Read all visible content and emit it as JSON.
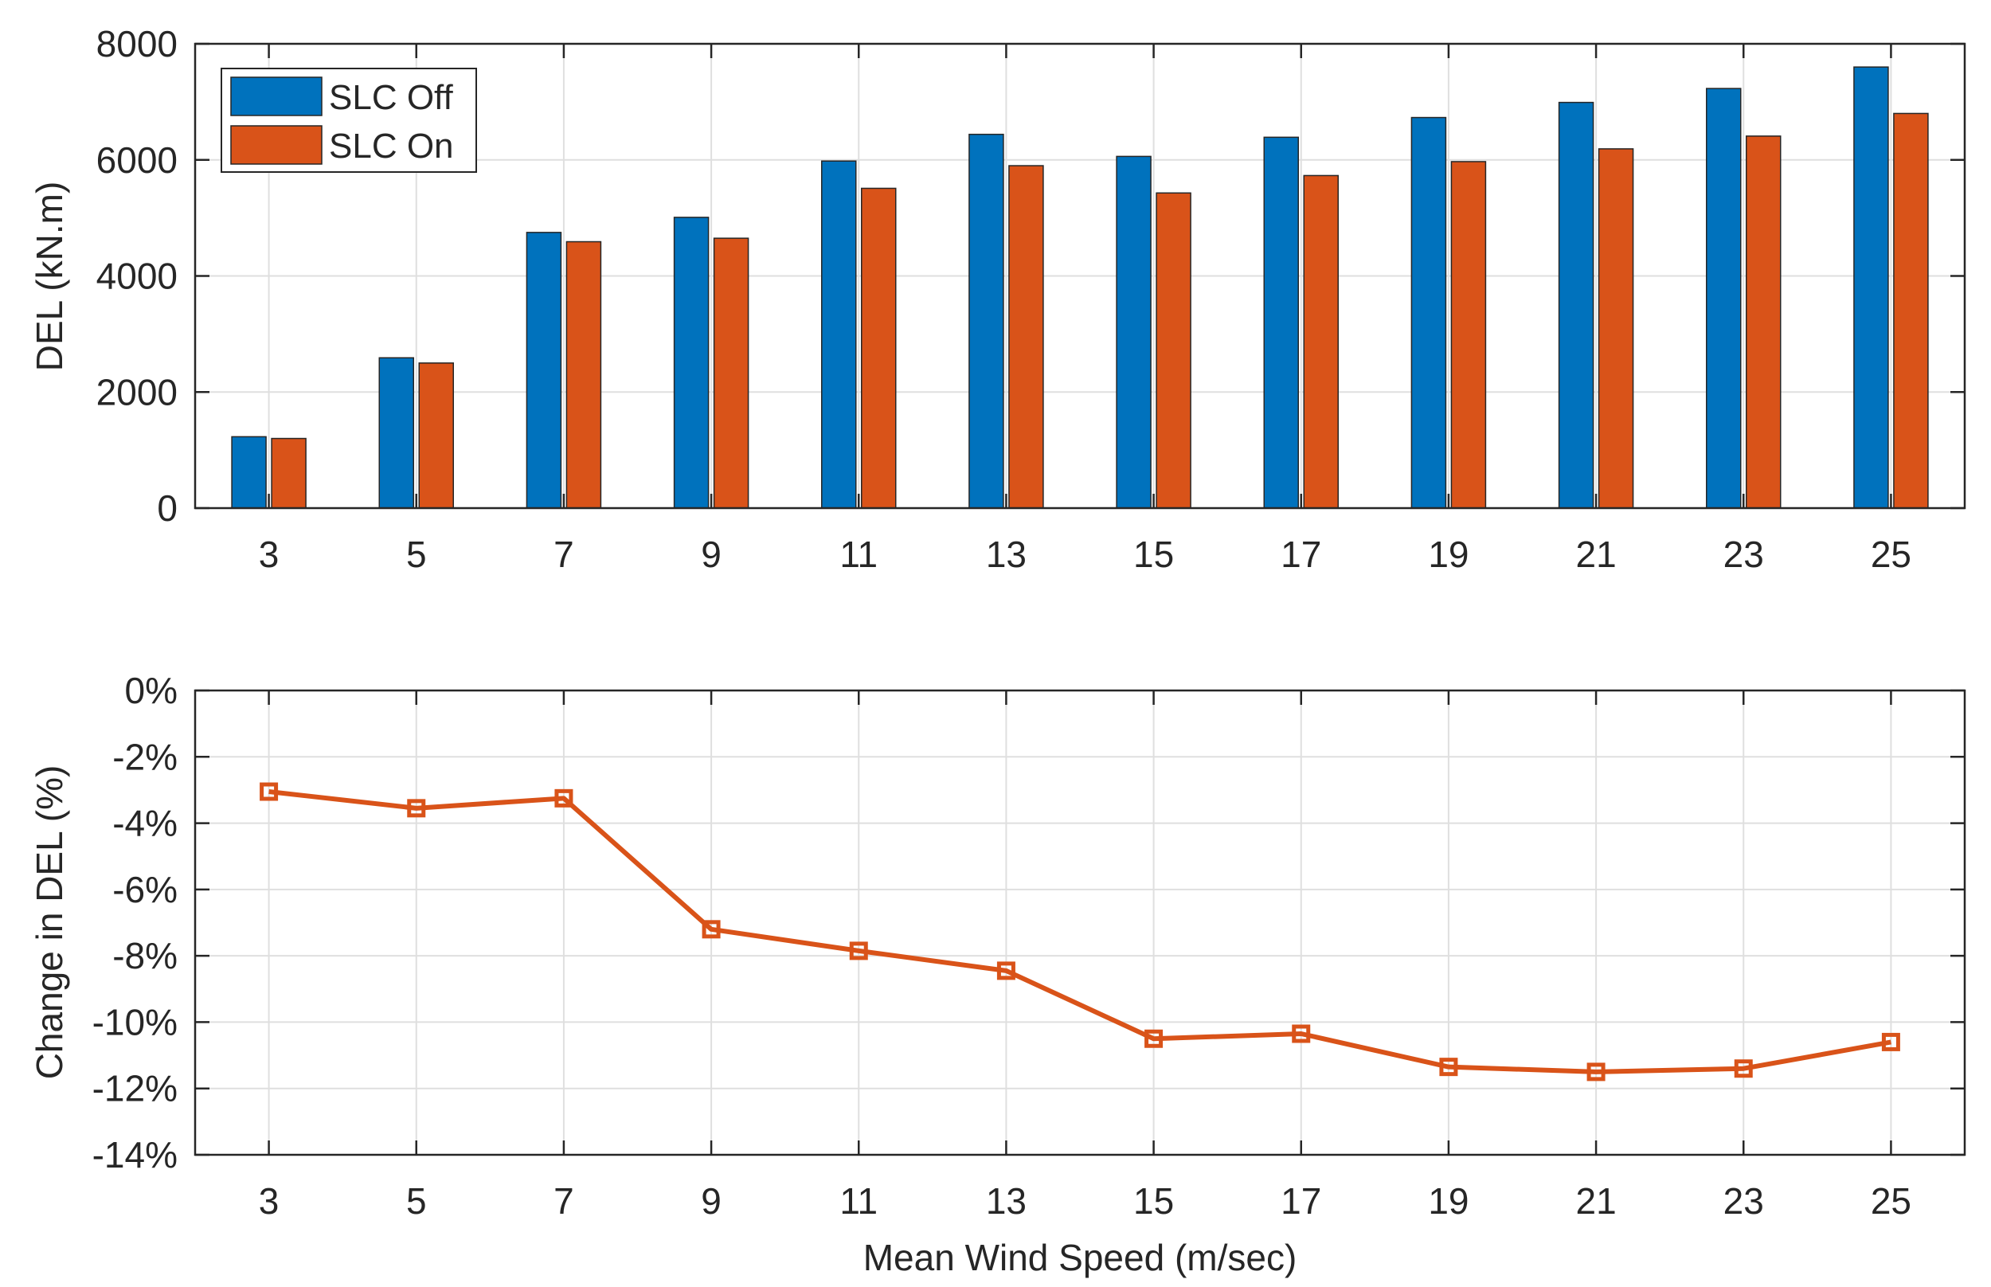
{
  "colors": {
    "slc_off": "#0072BD",
    "slc_on": "#D95319",
    "axis": "#262626",
    "grid": "#dfdfdf"
  },
  "chart_data": [
    {
      "type": "bar",
      "categories": [
        "3",
        "5",
        "7",
        "9",
        "11",
        "13",
        "15",
        "17",
        "19",
        "21",
        "23",
        "25"
      ],
      "series": [
        {
          "name": "SLC Off",
          "values": [
            1230,
            2590,
            4750,
            5010,
            5980,
            6440,
            6060,
            6390,
            6730,
            6990,
            7230,
            7600
          ]
        },
        {
          "name": "SLC On",
          "values": [
            1200,
            2500,
            4590,
            4650,
            5510,
            5900,
            5430,
            5730,
            5970,
            6190,
            6410,
            6800
          ]
        }
      ],
      "title": "",
      "xlabel": "",
      "ylabel": "DEL (kN.m)",
      "ylim": [
        0,
        8000
      ],
      "yticks": [
        0,
        2000,
        4000,
        6000,
        8000
      ],
      "ytick_labels": [
        "0",
        "2000",
        "4000",
        "6000",
        "8000"
      ],
      "grid": true,
      "legend_position": "top-left"
    },
    {
      "type": "line",
      "x": [
        "3",
        "5",
        "7",
        "9",
        "11",
        "13",
        "15",
        "17",
        "19",
        "21",
        "23",
        "25"
      ],
      "series": [
        {
          "name": "Change in DEL",
          "values": [
            -3.05,
            -3.55,
            -3.25,
            -7.2,
            -7.85,
            -8.45,
            -10.5,
            -10.35,
            -11.35,
            -11.5,
            -11.4,
            -10.6
          ]
        }
      ],
      "marker": "square",
      "title": "",
      "xlabel": "Mean Wind Speed (m/sec)",
      "ylabel": "Change in DEL (%)",
      "ylim": [
        -14,
        0
      ],
      "yticks": [
        0,
        -2,
        -4,
        -6,
        -8,
        -10,
        -12,
        -14
      ],
      "ytick_labels": [
        "0%",
        "-2%",
        "-4%",
        "-6%",
        "-8%",
        "-10%",
        "-12%",
        "-14%"
      ],
      "grid": true
    }
  ]
}
